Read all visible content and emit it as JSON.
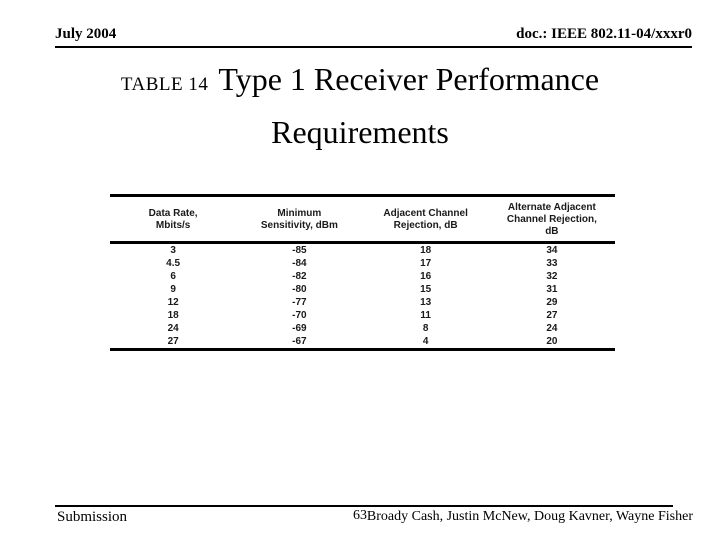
{
  "header": {
    "date": "July 2004",
    "doc_id": "doc.: IEEE 802.11-04/xxxr0"
  },
  "title": {
    "table_label": "TABLE 14",
    "line1": "Type 1 Receiver Performance",
    "line2": "Requirements"
  },
  "table": {
    "columns": [
      "Data Rate,\nMbits/s",
      "Minimum\nSensitivity, dBm",
      "Adjacent Channel\nRejection, dB",
      "Alternate Adjacent\nChannel Rejection,\ndB"
    ],
    "rows": [
      [
        "3",
        "-85",
        "18",
        "34"
      ],
      [
        "4.5",
        "-84",
        "17",
        "33"
      ],
      [
        "6",
        "-82",
        "16",
        "32"
      ],
      [
        "9",
        "-80",
        "15",
        "31"
      ],
      [
        "12",
        "-77",
        "13",
        "29"
      ],
      [
        "18",
        "-70",
        "11",
        "27"
      ],
      [
        "24",
        "-69",
        "8",
        "24"
      ],
      [
        "27",
        "-67",
        "4",
        "20"
      ]
    ]
  },
  "footer": {
    "submission": "Submission",
    "page_number": "63",
    "authors": "Broady Cash, Justin McNew, Doug Kavner, Wayne Fisher"
  },
  "colors": {
    "background": "#ffffff",
    "text": "#000000",
    "table_text": "#1a1a1a",
    "rule": "#000000"
  }
}
